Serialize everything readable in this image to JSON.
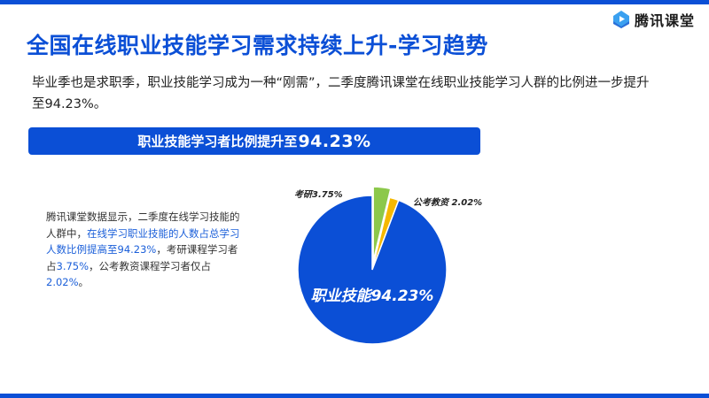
{
  "header": {
    "title": "全国在线职业技能学习需求持续上升-学习趋势",
    "logo_text": "腾讯课堂",
    "logo_icon": "tencent-classroom-play-icon"
  },
  "intro": {
    "text": "毕业季也是求职季，职业技能学习成为一种“刚需”，二季度腾讯课堂在线职业技能学习人群的比例进一步提升至94.23%。"
  },
  "banner": {
    "prefix": "职业技能学习者比例提升至",
    "value": "94.23%"
  },
  "description": {
    "part1": "腾讯课堂数据显示，二季度在线学习技能的人群中，",
    "highlight1": "在线学习职业技能的人数占总学习人数比例提高至94.23%",
    "part2": "，考研课程学习者占",
    "highlight2": "3.75%",
    "part3": "，公考教资课程学习者仅占",
    "highlight3": "2.02%",
    "part4": "。"
  },
  "colors": {
    "primary_blue": "#0b4fd6",
    "green": "#8cc84b",
    "yellow": "#f5b800"
  },
  "chart_data": {
    "type": "pie",
    "title": "职业技能学习者比例提升至94.23%",
    "categories": [
      "职业技能",
      "考研",
      "公考教资"
    ],
    "values": [
      94.23,
      3.75,
      2.02
    ],
    "labels": [
      "职业技能94.23%",
      "考研3.75%",
      "公考教资 2.02%"
    ],
    "colors": [
      "#0b4fd6",
      "#8cc84b",
      "#f5b800"
    ],
    "exploded": [
      "考研"
    ],
    "legend": "none (inline labels)"
  }
}
